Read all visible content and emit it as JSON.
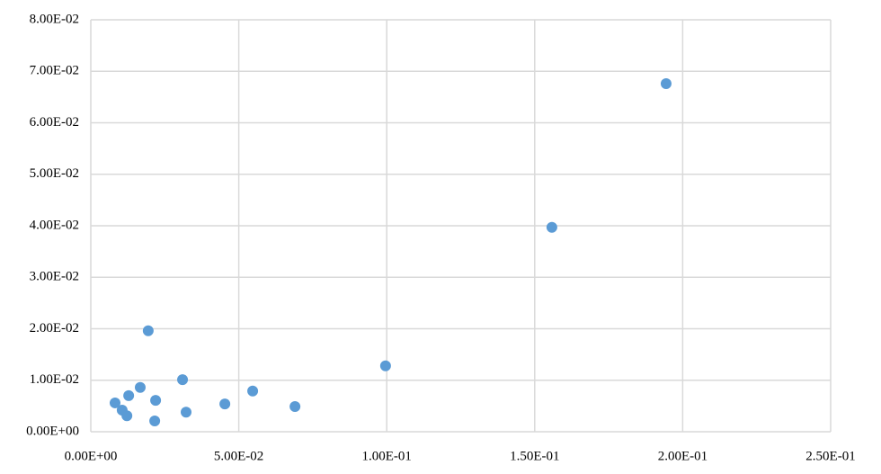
{
  "chart_data": {
    "type": "scatter",
    "x": [
      0.0082,
      0.0106,
      0.0122,
      0.0128,
      0.0167,
      0.0194,
      0.0216,
      0.0219,
      0.031,
      0.0322,
      0.0453,
      0.0547,
      0.069,
      0.0996,
      0.1558,
      0.1944
    ],
    "values": [
      0.0056,
      0.0042,
      0.0031,
      0.007,
      0.0086,
      0.0196,
      0.0021,
      0.0061,
      0.0101,
      0.0038,
      0.0054,
      0.0079,
      0.0049,
      0.0128,
      0.0397,
      0.0676
    ],
    "color": "#5b9bd5",
    "xlim": [
      0,
      0.25
    ],
    "xticks": [
      {
        "value": 0,
        "label": "0.00E+00"
      },
      {
        "value": 0.05,
        "label": "5.00E-02"
      },
      {
        "value": 0.1,
        "label": "1.00E-01"
      },
      {
        "value": 0.15,
        "label": "1.50E-01"
      },
      {
        "value": 0.2,
        "label": "2.00E-01"
      },
      {
        "value": 0.25,
        "label": "2.50E-01"
      }
    ],
    "ylim": [
      0,
      0.08
    ],
    "yticks": [
      {
        "value": 0,
        "label": "0.00E+00"
      },
      {
        "value": 0.01,
        "label": "1.00E-02"
      },
      {
        "value": 0.02,
        "label": "2.00E-02"
      },
      {
        "value": 0.03,
        "label": "3.00E-02"
      },
      {
        "value": 0.04,
        "label": "4.00E-02"
      },
      {
        "value": 0.05,
        "label": "5.00E-02"
      },
      {
        "value": 0.06,
        "label": "6.00E-02"
      },
      {
        "value": 0.07,
        "label": "7.00E-02"
      },
      {
        "value": 0.08,
        "label": "8.00E-02"
      }
    ],
    "grid": true
  }
}
